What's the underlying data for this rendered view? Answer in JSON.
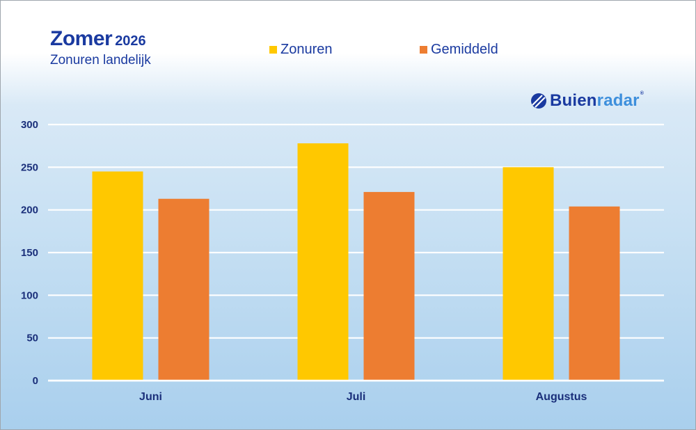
{
  "title": "Zomer",
  "title_year": "2026",
  "subtitle": "Zonuren landelijk",
  "brand": {
    "part1": "Buien",
    "part2": "radar",
    "reg": "®"
  },
  "chart_data": {
    "type": "bar",
    "categories": [
      "Juni",
      "Juli",
      "Augustus"
    ],
    "series": [
      {
        "name": "Zonuren",
        "values": [
          245,
          278,
          250
        ],
        "color": "#ffc800"
      },
      {
        "name": "Gemiddeld",
        "values": [
          213,
          221,
          204
        ],
        "color": "#ed7d31"
      }
    ],
    "ylim": [
      0,
      300
    ],
    "yticks": [
      0,
      50,
      100,
      150,
      200,
      250,
      300
    ],
    "grid": true,
    "legend": "top",
    "gridline_color": "#ffffff",
    "text_color": "#1a2f7a"
  }
}
